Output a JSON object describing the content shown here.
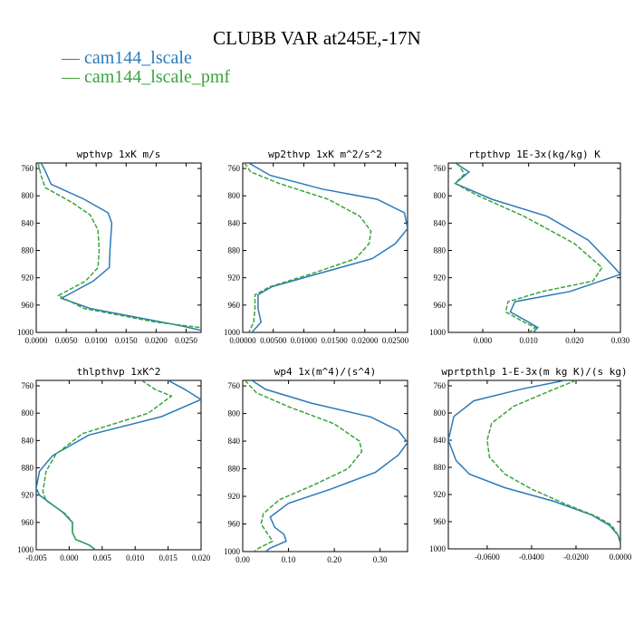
{
  "figure": {
    "title": "CLUBB VAR at245E,-17N",
    "legend": [
      {
        "label": "cam144_lscale",
        "color": "#2a7ab9",
        "dash": "solid"
      },
      {
        "label": "cam144_lscale_pmf",
        "color": "#3aa33a",
        "dash": "dashed"
      }
    ]
  },
  "chart_data": [
    {
      "type": "line",
      "title": "wpthvp  1xK m/s",
      "y_axis": {
        "range": [
          1000,
          752
        ],
        "ticks": [
          760,
          800,
          840,
          880,
          920,
          960,
          1000
        ],
        "inverted": true
      },
      "x_axis": {
        "range": [
          0,
          0.0275
        ],
        "ticks": [
          0,
          0.005,
          0.01,
          0.015,
          0.02,
          0.025
        ],
        "tick_labels": [
          "0.0000",
          "0.0050",
          "0.0100",
          "0.0150",
          "0.0200",
          "0.0250"
        ]
      },
      "series": [
        {
          "name": "cam144_lscale",
          "points": [
            [
              0.0008,
              752
            ],
            [
              0.0013,
              760
            ],
            [
              0.0025,
              783
            ],
            [
              0.008,
              805
            ],
            [
              0.012,
              825
            ],
            [
              0.0126,
              840
            ],
            [
              0.0123,
              880
            ],
            [
              0.0122,
              905
            ],
            [
              0.0095,
              925
            ],
            [
              0.0042,
              950
            ],
            [
              0.009,
              965
            ],
            [
              0.024,
              990
            ],
            [
              0.0275,
              997
            ]
          ]
        },
        {
          "name": "cam144_lscale_pmf",
          "points": [
            [
              0.0003,
              752
            ],
            [
              0.0008,
              770
            ],
            [
              0.0015,
              788
            ],
            [
              0.006,
              810
            ],
            [
              0.009,
              828
            ],
            [
              0.0103,
              850
            ],
            [
              0.0105,
              880
            ],
            [
              0.0103,
              905
            ],
            [
              0.0082,
              925
            ],
            [
              0.0037,
              946
            ],
            [
              0.008,
              965
            ],
            [
              0.02,
              985
            ],
            [
              0.0275,
              993
            ]
          ]
        }
      ]
    },
    {
      "type": "line",
      "title": "wp2thvp  1xK m^2/s^2",
      "y_axis": {
        "range": [
          1000,
          752
        ],
        "ticks": [
          760,
          800,
          840,
          880,
          920,
          960,
          1000
        ],
        "inverted": true
      },
      "x_axis": {
        "range": [
          0,
          0.027
        ],
        "ticks": [
          0,
          0.005,
          0.01,
          0.015,
          0.02,
          0.025
        ],
        "tick_labels": [
          "0.00000",
          "0.00500",
          "0.01000",
          "0.01500",
          "0.02000",
          "0.02500"
        ]
      },
      "series": [
        {
          "name": "cam144_lscale",
          "points": [
            [
              0.001,
              752
            ],
            [
              0.0045,
              770
            ],
            [
              0.013,
              790
            ],
            [
              0.022,
              805
            ],
            [
              0.0265,
              825
            ],
            [
              0.027,
              848
            ],
            [
              0.025,
              870
            ],
            [
              0.0212,
              892
            ],
            [
              0.012,
              915
            ],
            [
              0.0048,
              933
            ],
            [
              0.0025,
              945
            ],
            [
              0.0025,
              965
            ],
            [
              0.003,
              985
            ],
            [
              0.0015,
              1000
            ]
          ]
        },
        {
          "name": "cam144_lscale_pmf",
          "points": [
            [
              0.0003,
              752
            ],
            [
              0.0013,
              765
            ],
            [
              0.006,
              782
            ],
            [
              0.014,
              805
            ],
            [
              0.0192,
              830
            ],
            [
              0.021,
              852
            ],
            [
              0.0207,
              870
            ],
            [
              0.0185,
              892
            ],
            [
              0.011,
              915
            ],
            [
              0.0045,
              933
            ],
            [
              0.002,
              945
            ],
            [
              0.002,
              965
            ],
            [
              0.0018,
              985
            ],
            [
              0.001,
              1000
            ]
          ]
        }
      ]
    },
    {
      "type": "line",
      "title": "rtpthvp  1E-3x(kg/kg) K",
      "y_axis": {
        "range": [
          1000,
          752
        ],
        "ticks": [
          760,
          800,
          840,
          880,
          920,
          960,
          1000
        ],
        "inverted": true
      },
      "x_axis": {
        "range": [
          -0.0075,
          0.03
        ],
        "ticks": [
          0,
          0.01,
          0.02,
          0.03
        ],
        "tick_labels": [
          "0.000",
          "0.010",
          "0.020",
          "0.030"
        ]
      },
      "series": [
        {
          "name": "cam144_lscale",
          "points": [
            [
              -0.006,
              752
            ],
            [
              -0.003,
              765
            ],
            [
              -0.006,
              782
            ],
            [
              0.002,
              805
            ],
            [
              0.014,
              830
            ],
            [
              0.023,
              865
            ],
            [
              0.028,
              900
            ],
            [
              0.03,
              915
            ],
            [
              0.019,
              940
            ],
            [
              0.007,
              955
            ],
            [
              0.006,
              970
            ],
            [
              0.01,
              985
            ],
            [
              0.012,
              993
            ],
            [
              0.011,
              1000
            ]
          ]
        },
        {
          "name": "cam144_lscale_pmf",
          "points": [
            [
              -0.0055,
              752
            ],
            [
              -0.004,
              768
            ],
            [
              -0.006,
              782
            ],
            [
              -0.001,
              800
            ],
            [
              0.009,
              830
            ],
            [
              0.02,
              870
            ],
            [
              0.026,
              905
            ],
            [
              0.024,
              925
            ],
            [
              0.013,
              940
            ],
            [
              0.0055,
              955
            ],
            [
              0.005,
              970
            ],
            [
              0.009,
              985
            ],
            [
              0.0115,
              993
            ],
            [
              0.01,
              1000
            ]
          ]
        }
      ]
    },
    {
      "type": "line",
      "title": "thlpthvp  1xK^2",
      "y_axis": {
        "range": [
          1000,
          752
        ],
        "ticks": [
          760,
          800,
          840,
          880,
          920,
          960,
          1000
        ],
        "inverted": true
      },
      "x_axis": {
        "range": [
          -0.005,
          0.02
        ],
        "ticks": [
          -0.005,
          0,
          0.005,
          0.01,
          0.015,
          0.02
        ],
        "tick_labels": [
          "-0.005",
          "0.000",
          "0.005",
          "0.010",
          "0.015",
          "0.020"
        ]
      },
      "series": [
        {
          "name": "cam144_lscale",
          "points": [
            [
              0.015,
              752
            ],
            [
              0.0175,
              765
            ],
            [
              0.02,
              780
            ],
            [
              0.014,
              805
            ],
            [
              0.003,
              832
            ],
            [
              -0.0025,
              862
            ],
            [
              -0.0045,
              885
            ],
            [
              -0.005,
              910
            ],
            [
              -0.0045,
              920
            ],
            [
              -0.001,
              945
            ],
            [
              0.0005,
              960
            ],
            [
              0.0005,
              975
            ],
            [
              0.001,
              985
            ],
            [
              0.003,
              993
            ],
            [
              0.004,
              1000
            ]
          ]
        },
        {
          "name": "cam144_lscale_pmf",
          "points": [
            [
              0.011,
              752
            ],
            [
              0.013,
              765
            ],
            [
              0.0155,
              775
            ],
            [
              0.012,
              800
            ],
            [
              0.002,
              830
            ],
            [
              -0.002,
              860
            ],
            [
              -0.0035,
              885
            ],
            [
              -0.004,
              915
            ],
            [
              -0.0035,
              928
            ],
            [
              -0.0005,
              948
            ],
            [
              0.0005,
              960
            ],
            [
              0.0005,
              975
            ],
            [
              0.001,
              985
            ],
            [
              0.003,
              993
            ],
            [
              0.004,
              1000
            ]
          ]
        }
      ]
    },
    {
      "type": "line",
      "title": "wp4  1x(m^4)/(s^4)",
      "y_axis": {
        "range": [
          1000,
          752
        ],
        "ticks": [
          760,
          800,
          840,
          880,
          920,
          960,
          1000
        ],
        "inverted": true
      },
      "x_axis": {
        "range": [
          0,
          0.36
        ],
        "ticks": [
          0,
          0.1,
          0.2,
          0.3
        ],
        "tick_labels": [
          "0.00",
          "0.10",
          "0.20",
          "0.30"
        ]
      },
      "series": [
        {
          "name": "cam144_lscale",
          "points": [
            [
              0.02,
              752
            ],
            [
              0.05,
              765
            ],
            [
              0.15,
              785
            ],
            [
              0.28,
              805
            ],
            [
              0.34,
              825
            ],
            [
              0.36,
              842
            ],
            [
              0.34,
              860
            ],
            [
              0.29,
              885
            ],
            [
              0.19,
              910
            ],
            [
              0.1,
              930
            ],
            [
              0.06,
              950
            ],
            [
              0.07,
              965
            ],
            [
              0.09,
              975
            ],
            [
              0.095,
              985
            ],
            [
              0.06,
              995
            ],
            [
              0.05,
              1000
            ]
          ]
        },
        {
          "name": "cam144_lscale_pmf",
          "points": [
            [
              0.005,
              752
            ],
            [
              0.03,
              770
            ],
            [
              0.1,
              790
            ],
            [
              0.2,
              815
            ],
            [
              0.255,
              840
            ],
            [
              0.26,
              855
            ],
            [
              0.23,
              880
            ],
            [
              0.15,
              905
            ],
            [
              0.08,
              925
            ],
            [
              0.045,
              945
            ],
            [
              0.04,
              960
            ],
            [
              0.05,
              970
            ],
            [
              0.065,
              985
            ],
            [
              0.035,
              995
            ],
            [
              0.025,
              1000
            ]
          ]
        }
      ]
    },
    {
      "type": "line",
      "title": "wprtpthlp  1-E-3x(m kg K)/(s kg)",
      "y_axis": {
        "range": [
          1000,
          752
        ],
        "ticks": [
          760,
          800,
          840,
          880,
          920,
          960,
          1000
        ],
        "inverted": true
      },
      "x_axis": {
        "range": [
          -0.0775,
          0
        ],
        "ticks": [
          -0.06,
          -0.04,
          -0.02,
          0
        ],
        "tick_labels": [
          "-0.0600",
          "-0.0400",
          "-0.0200",
          "0.0000"
        ]
      },
      "series": [
        {
          "name": "cam144_lscale",
          "points": [
            [
              -0.025,
              752
            ],
            [
              -0.045,
              765
            ],
            [
              -0.066,
              782
            ],
            [
              -0.075,
              805
            ],
            [
              -0.0775,
              840
            ],
            [
              -0.074,
              870
            ],
            [
              -0.068,
              890
            ],
            [
              -0.052,
              910
            ],
            [
              -0.03,
              930
            ],
            [
              -0.013,
              950
            ],
            [
              -0.005,
              965
            ],
            [
              -0.001,
              980
            ],
            [
              0.0,
              992
            ],
            [
              0.0,
              1000
            ]
          ]
        },
        {
          "name": "cam144_lscale_pmf",
          "points": [
            [
              -0.02,
              752
            ],
            [
              -0.03,
              765
            ],
            [
              -0.048,
              790
            ],
            [
              -0.058,
              815
            ],
            [
              -0.06,
              840
            ],
            [
              -0.059,
              865
            ],
            [
              -0.052,
              890
            ],
            [
              -0.04,
              912
            ],
            [
              -0.024,
              935
            ],
            [
              -0.011,
              952
            ],
            [
              -0.004,
              965
            ],
            [
              -0.001,
              980
            ],
            [
              0.0,
              992
            ],
            [
              0.0,
              1000
            ]
          ]
        }
      ]
    }
  ]
}
